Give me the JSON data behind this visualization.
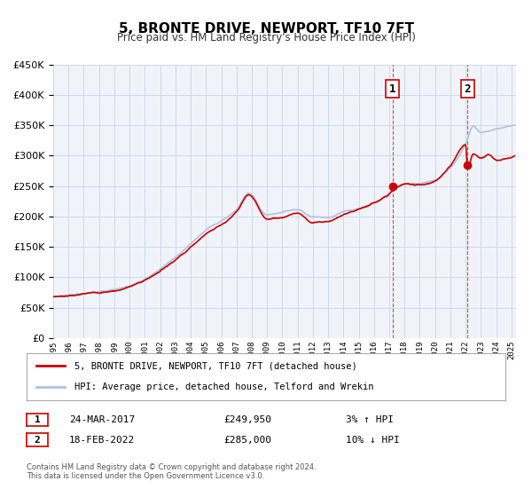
{
  "title": "5, BRONTE DRIVE, NEWPORT, TF10 7FT",
  "subtitle": "Price paid vs. HM Land Registry's House Price Index (HPI)",
  "xlabel": "",
  "ylabel": "",
  "ylim": [
    0,
    450000
  ],
  "yticks": [
    0,
    50000,
    100000,
    150000,
    200000,
    250000,
    300000,
    350000,
    400000,
    450000
  ],
  "ytick_labels": [
    "£0",
    "£50K",
    "£100K",
    "£150K",
    "£200K",
    "£250K",
    "£300K",
    "£350K",
    "£400K",
    "£450K"
  ],
  "xlim_start": 1995.0,
  "xlim_end": 2025.3,
  "x_year_start": 1995,
  "x_year_end": 2025,
  "sale1_x": 2017.226,
  "sale1_y": 249950,
  "sale1_label": "1",
  "sale1_date": "24-MAR-2017",
  "sale1_price": "£249,950",
  "sale1_hpi": "3% ↑ HPI",
  "sale2_x": 2022.127,
  "sale2_y": 285000,
  "sale2_label": "2",
  "sale2_date": "18-FEB-2022",
  "sale2_price": "£285,000",
  "sale2_hpi": "10% ↓ HPI",
  "hpi_color": "#aac4e0",
  "price_color": "#cc0000",
  "vline_color": "#cc0000",
  "grid_color": "#d0d8e8",
  "bg_color": "#f0f4fa",
  "plot_bg": "#f0f4fa",
  "legend1": "5, BRONTE DRIVE, NEWPORT, TF10 7FT (detached house)",
  "legend2": "HPI: Average price, detached house, Telford and Wrekin",
  "footer1": "Contains HM Land Registry data © Crown copyright and database right 2024.",
  "footer2": "This data is licensed under the Open Government Licence v3.0."
}
